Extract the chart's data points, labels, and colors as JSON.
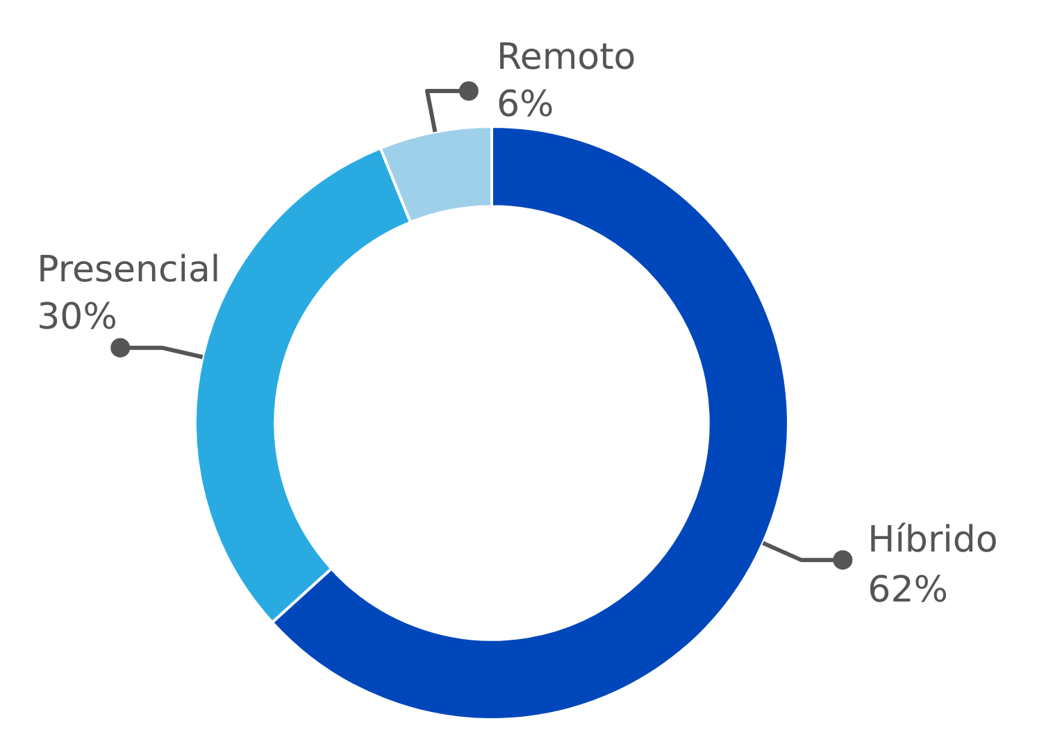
{
  "chart_data": {
    "type": "donut",
    "categories": [
      "Híbrido",
      "Presencial",
      "Remoto"
    ],
    "values": [
      62,
      30,
      6
    ],
    "colors": [
      "#0047bb",
      "#29abe2",
      "#9fd0ea"
    ],
    "value_labels": [
      "62%",
      "30%",
      "6%"
    ],
    "legend": false
  }
}
